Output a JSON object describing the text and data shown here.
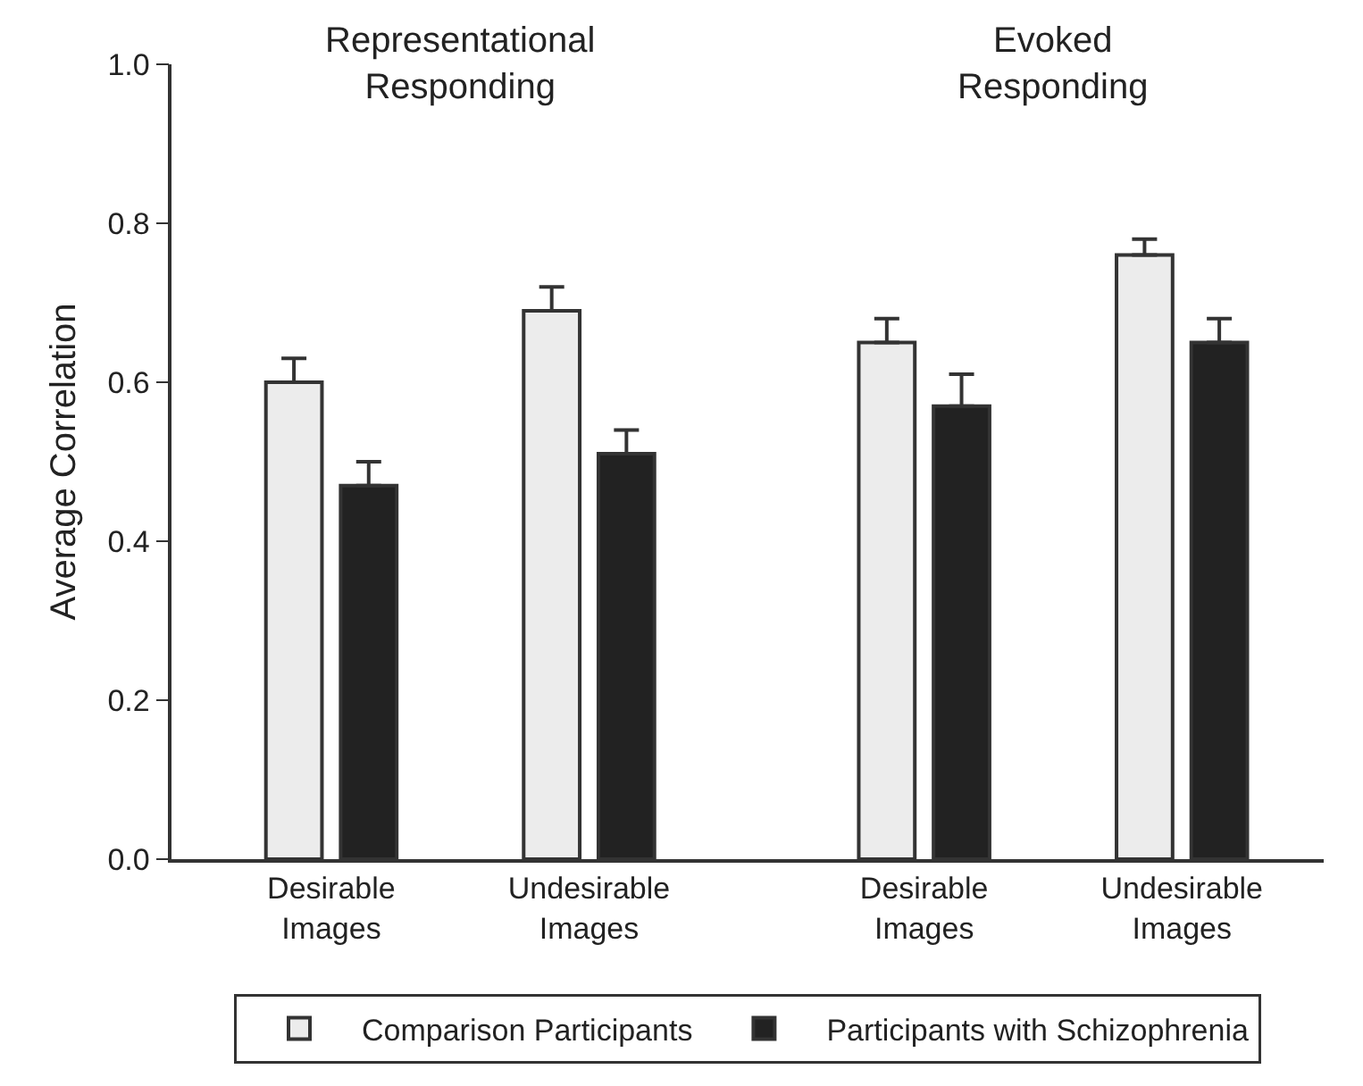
{
  "chart_data": {
    "type": "bar",
    "ylabel": "Average Correlation",
    "categories": [
      "Desirable Images",
      "Undesirable Images",
      "Desirable Images",
      "Undesirable Images"
    ],
    "series": [
      {
        "name": "Comparison Participants",
        "color": "#ececec",
        "values": [
          0.6,
          0.69,
          0.65,
          0.76
        ],
        "errors": [
          [
            0.6,
            0.63
          ],
          [
            0.69,
            0.72
          ],
          [
            0.65,
            0.68
          ],
          [
            0.76,
            0.78
          ]
        ]
      },
      {
        "name": "Participants with Schizophrenia",
        "color": "#222222",
        "values": [
          0.47,
          0.51,
          0.57,
          0.65
        ],
        "errors": [
          [
            0.47,
            0.5
          ],
          [
            0.51,
            0.54
          ],
          [
            0.57,
            0.61
          ],
          [
            0.65,
            0.68
          ]
        ]
      }
    ],
    "annotations": [
      "Representational Responding",
      "Evoked Responding"
    ],
    "ylim": [
      0,
      1.0
    ],
    "yticks": [
      {
        "value": 0,
        "label": "0.0"
      },
      {
        "value": 0.2,
        "label": "0.2"
      },
      {
        "value": 0.4,
        "label": "0.4"
      },
      {
        "value": 0.6,
        "label": "0.6"
      },
      {
        "value": 0.8,
        "label": "0.8"
      },
      {
        "value": 1.0,
        "label": "1.0"
      }
    ],
    "grid": false,
    "legend": "bottom"
  }
}
